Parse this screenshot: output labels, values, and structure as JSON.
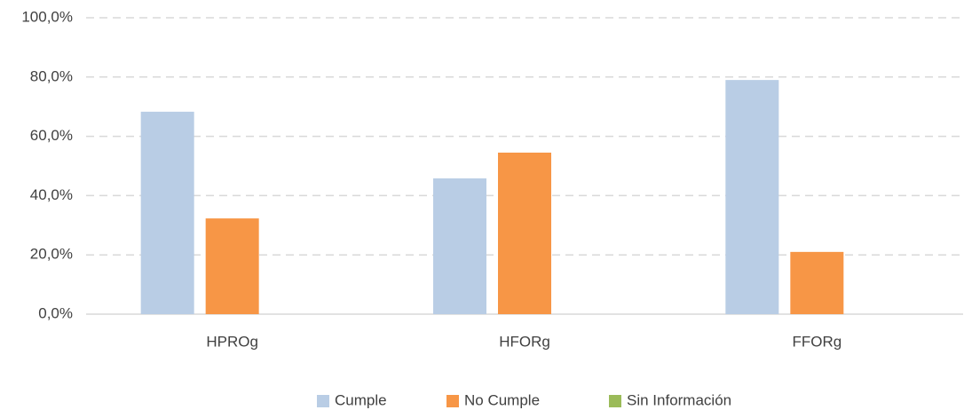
{
  "chart_data": {
    "type": "bar",
    "categories": [
      "HPROg",
      "HFORg",
      "FFORg"
    ],
    "series": [
      {
        "name": "Cumple",
        "color": "#b9cde5",
        "values": [
          68.3,
          45.8,
          79.0
        ]
      },
      {
        "name": "No Cumple",
        "color": "#f79646",
        "values": [
          32.3,
          54.5,
          21.0
        ]
      },
      {
        "name": "Sin Información",
        "color": "#9bbb59",
        "values": [
          0,
          0,
          0
        ]
      }
    ],
    "ylim": [
      0,
      100
    ],
    "yticks": [
      {
        "value": 0,
        "label": "0,0%"
      },
      {
        "value": 20,
        "label": "20,0%"
      },
      {
        "value": 40,
        "label": "40,0%"
      },
      {
        "value": 60,
        "label": "60,0%"
      },
      {
        "value": 80,
        "label": "80,0%"
      },
      {
        "value": 100,
        "label": "100,0%"
      }
    ],
    "grid": true,
    "legend": "bottom"
  }
}
